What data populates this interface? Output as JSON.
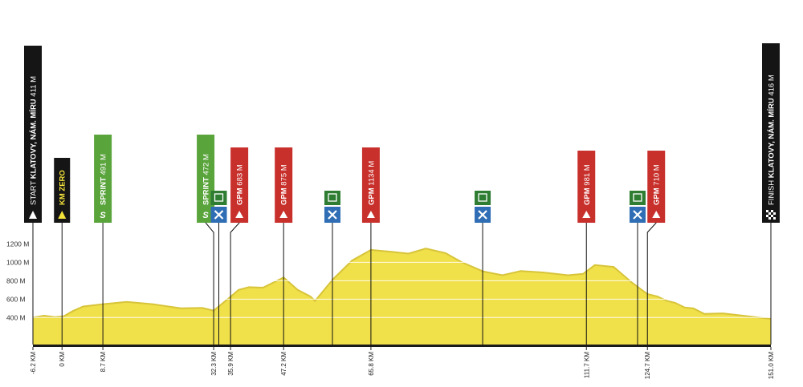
{
  "chart_data": {
    "type": "area",
    "y_ticks": [
      400,
      600,
      800,
      1000,
      1200
    ],
    "y_unit": "M",
    "ylim": [
      230,
      1420
    ],
    "xlim": [
      -6.2,
      151.0
    ],
    "grid": true,
    "colors": {
      "fill": "#f0e04a",
      "stroke": "#d7c43a",
      "sprint": "#5aa43c",
      "gpm": "#c8302c",
      "feed": "#2f6db5",
      "feed_top": "#2e7d32",
      "black": "#151515",
      "ground": "#1a1a1a"
    },
    "profile": {
      "x": [
        -6.2,
        -3.8,
        -1.5,
        0.4,
        2.3,
        4.5,
        8.7,
        13.8,
        19.3,
        25.3,
        29.8,
        32.3,
        35.9,
        37.6,
        39.8,
        42.8,
        47.2,
        50.2,
        52.9,
        53.9,
        57.7,
        61.8,
        65.8,
        70.2,
        73.8,
        77.5,
        81.7,
        85.2,
        89.8,
        93.8,
        97.7,
        102.4,
        107.8,
        111.0,
        113.5,
        117.5,
        121.4,
        124.7,
        126.8,
        128.9,
        130.6,
        132.6,
        134.5,
        136.8,
        140.8,
        151.0
      ],
      "y": [
        400,
        420,
        405,
        415,
        470,
        520,
        545,
        570,
        545,
        500,
        505,
        475,
        625,
        700,
        730,
        725,
        835,
        700,
        630,
        580,
        815,
        1020,
        1135,
        1115,
        1095,
        1150,
        1100,
        1000,
        900,
        860,
        905,
        890,
        860,
        875,
        970,
        950,
        780,
        655,
        630,
        580,
        560,
        510,
        500,
        440,
        445,
        385
      ]
    },
    "km_ticks": [
      "-6.2 KM",
      "0 KM",
      "8.7 KM",
      "32.3 KM",
      "35.9 KM",
      "47.2 KM",
      "65.8 KM",
      "111.7 KM",
      "124.7 KM",
      "151.0 KM"
    ],
    "km_values": [
      -6.2,
      0,
      8.7,
      32.3,
      35.9,
      47.2,
      65.8,
      111.7,
      124.7,
      151.0
    ],
    "markers": [
      {
        "km": -6.2,
        "type": "start",
        "label": "START KLATOVY, NÁM. MÍRU 411 M",
        "bold": "KLATOVY, NÁM. MÍRU",
        "pre": "START ",
        "post": " 411 M",
        "color": "#151515",
        "icon": "triangle-icon"
      },
      {
        "km": 0,
        "type": "kmzero",
        "label": "KM ZERO",
        "bold": "KM ZERO",
        "pre": "",
        "post": "",
        "color": "#151515",
        "icon": "triangle-icon"
      },
      {
        "km": 8.7,
        "type": "sprint",
        "label": "SPRINT 491 M",
        "bold": "SPRINT",
        "pre": "",
        "post": " 491 M",
        "color": "#5aa43c",
        "icon": "sprint-icon"
      },
      {
        "km": 32.3,
        "type": "sprint",
        "label": "SPRINT 472 M",
        "bold": "SPRINT",
        "pre": "",
        "post": " 472 M",
        "color": "#5aa43c",
        "icon": "sprint-icon"
      },
      {
        "km": 33.4,
        "type": "feed",
        "icon": "feed-zone-icon"
      },
      {
        "km": 35.9,
        "type": "gpm",
        "label": "GPM 683 M",
        "bold": "GPM",
        "pre": "",
        "post": " 683 M",
        "color": "#c8302c",
        "icon": "mountain-icon"
      },
      {
        "km": 47.2,
        "type": "gpm",
        "label": "GPM 875 M",
        "bold": "GPM",
        "pre": "",
        "post": " 875 M",
        "color": "#c8302c",
        "icon": "mountain-icon"
      },
      {
        "km": 57.6,
        "type": "feed",
        "icon": "feed-zone-icon"
      },
      {
        "km": 65.8,
        "type": "gpm",
        "label": "GPM 1134 M",
        "bold": "GPM",
        "pre": "",
        "post": " 1134 M",
        "color": "#c8302c",
        "icon": "mountain-icon"
      },
      {
        "km": 89.6,
        "type": "feed",
        "icon": "feed-zone-icon"
      },
      {
        "km": 111.7,
        "type": "gpm",
        "label": "GPM 981 M",
        "bold": "GPM",
        "pre": "",
        "post": " 981 M",
        "color": "#c8302c",
        "icon": "mountain-icon"
      },
      {
        "km": 122.6,
        "type": "feed",
        "icon": "feed-zone-icon"
      },
      {
        "km": 124.7,
        "type": "gpm",
        "label": "GPM 710 M",
        "bold": "GPM",
        "pre": "",
        "post": " 710 M",
        "color": "#c8302c",
        "icon": "mountain-icon"
      },
      {
        "km": 151.0,
        "type": "finish",
        "label": "FINISH KLATOVY, NÁM. MÍRU 416 M",
        "bold": "KLATOVY, NÁM. MÍRU",
        "pre": "FINISH ",
        "post": " 416 M",
        "color": "#151515",
        "icon": "finish-flag-icon"
      }
    ]
  }
}
